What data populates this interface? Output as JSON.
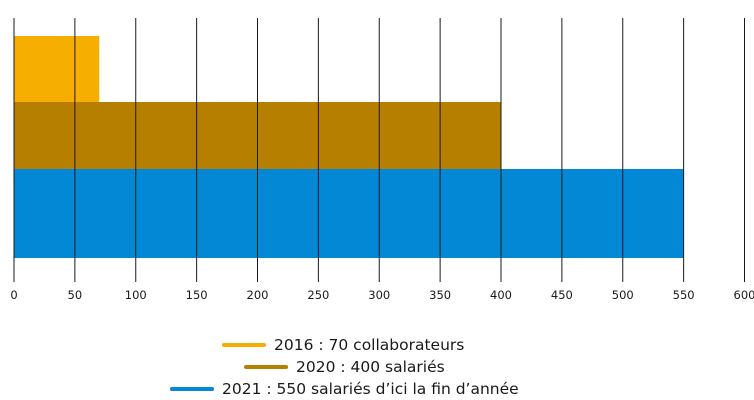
{
  "chart_data": {
    "type": "bar",
    "orientation": "horizontal",
    "xlim": [
      0,
      600
    ],
    "x_ticks": [
      "0",
      "50",
      "100",
      "150",
      "200",
      "250",
      "300",
      "350",
      "400",
      "450",
      "500",
      "550",
      "600"
    ],
    "grid": true,
    "legend_position": "bottom-center",
    "series": [
      {
        "name": "2016 : 70 collaborateurs",
        "value": 70,
        "color": "#F6AE00"
      },
      {
        "name": "2020 : 400 salariés",
        "value": 400,
        "color": "#B77F00"
      },
      {
        "name": "2021 : 550 salariés d’ici la fin d’année",
        "value": 550,
        "color": "#0288D4"
      }
    ]
  }
}
